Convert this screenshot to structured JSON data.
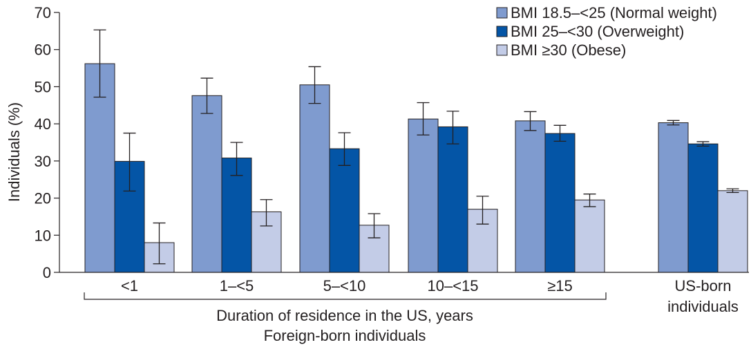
{
  "chart_data": {
    "type": "bar",
    "ylabel": "Individuals (%)",
    "ylim": [
      0,
      70
    ],
    "yticks": [
      "0",
      "10",
      "20",
      "30",
      "40",
      "50",
      "60",
      "70"
    ],
    "categories": [
      "<1",
      "1–<5",
      "5–<10",
      "10–<15",
      "≥15",
      "US-born individuals"
    ],
    "category_labels": [
      [
        "<1"
      ],
      [
        "1–<5"
      ],
      [
        "5–<10"
      ],
      [
        "10–<15"
      ],
      [
        "≥15"
      ],
      [
        "US-born",
        "individuals"
      ]
    ],
    "group_label_1": "Duration of residence in the US, years",
    "group_label_2": "Foreign-born individuals",
    "legend_position": "top-right",
    "series": [
      {
        "name": "BMI 18.5–<25 (Normal weight)",
        "color": "#7f9bcf",
        "values": [
          56.2,
          47.6,
          50.5,
          41.3,
          40.8,
          40.3
        ],
        "error_low": [
          47.2,
          42.8,
          45.5,
          37.0,
          38.2,
          39.7
        ],
        "error_high": [
          65.3,
          52.3,
          55.4,
          45.7,
          43.3,
          40.9
        ]
      },
      {
        "name": "BMI 25–<30 (Overweight)",
        "color": "#0455a6",
        "values": [
          29.9,
          30.8,
          33.3,
          39.2,
          37.4,
          34.6
        ],
        "error_low": [
          21.9,
          26.1,
          28.8,
          34.6,
          35.3,
          34.0
        ],
        "error_high": [
          37.5,
          35.0,
          37.6,
          43.4,
          39.6,
          35.2
        ]
      },
      {
        "name": "BMI ≥30 (Obese)",
        "color": "#c3cce7",
        "values": [
          8.0,
          16.3,
          12.7,
          17.0,
          19.5,
          22.0
        ],
        "error_low": [
          2.3,
          12.5,
          9.3,
          13.0,
          17.7,
          21.5
        ],
        "error_high": [
          13.3,
          19.6,
          15.8,
          20.5,
          21.1,
          22.5
        ]
      }
    ]
  }
}
